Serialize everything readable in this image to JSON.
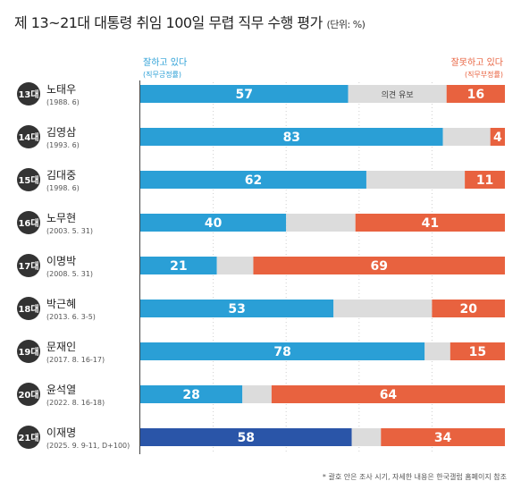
{
  "title": "제 13~21대 대통령 취임 100일 무렵 직무 수행 평가",
  "title_unit": "(단위: %)",
  "legend": {
    "positive": "잘하고 있다",
    "positive_sub": "(직무긍정률)",
    "negative": "잘못하고 있다",
    "negative_sub": "(직무부정률)"
  },
  "footnote": "* 괄호 안은 조사 시기, 자세한 내용은 한국갤럽 홈페이지 참조",
  "colors": {
    "positive": "#2a9fd6",
    "positive_highlight": "#2a55a8",
    "neutral": "#dcdcdc",
    "negative": "#e8623f",
    "badge": "#333333"
  },
  "chart_data": {
    "type": "bar",
    "stacked": true,
    "orientation": "horizontal",
    "xlim": [
      0,
      100
    ],
    "grid": true,
    "neutral_label": "의견 유보",
    "categories": [
      {
        "term": "13대",
        "name": "노태우",
        "period": "(1988. 6)"
      },
      {
        "term": "14대",
        "name": "김영삼",
        "period": "(1993. 6)"
      },
      {
        "term": "15대",
        "name": "김대중",
        "period": "(1998. 6)"
      },
      {
        "term": "16대",
        "name": "노무현",
        "period": "(2003. 5. 31)"
      },
      {
        "term": "17대",
        "name": "이명박",
        "period": "(2008. 5. 31)"
      },
      {
        "term": "18대",
        "name": "박근혜",
        "period": "(2013. 6. 3-5)"
      },
      {
        "term": "19대",
        "name": "문재인",
        "period": "(2017. 8. 16-17)"
      },
      {
        "term": "20대",
        "name": "윤석열",
        "period": "(2022. 8. 16-18)"
      },
      {
        "term": "21대",
        "name": "이재명",
        "period": "(2025. 9. 9-11, D+100)"
      }
    ],
    "series": [
      {
        "name": "잘하고 있다",
        "values": [
          57,
          83,
          62,
          40,
          21,
          53,
          78,
          28,
          58
        ]
      },
      {
        "name": "의견 유보",
        "values": [
          27,
          13,
          27,
          19,
          10,
          27,
          7,
          8,
          8
        ]
      },
      {
        "name": "잘못하고 있다",
        "values": [
          16,
          4,
          11,
          41,
          69,
          20,
          15,
          64,
          34
        ]
      }
    ],
    "highlight_index": 8
  }
}
